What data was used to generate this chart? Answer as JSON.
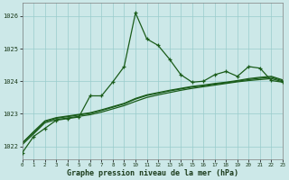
{
  "title": "Graphe pression niveau de la mer (hPa)",
  "background_color": "#cce8e8",
  "grid_color": "#99cccc",
  "line_color_dark": "#1a5c1a",
  "line_color_bright": "#33aa33",
  "xlim": [
    0,
    23
  ],
  "ylim": [
    1021.6,
    1026.4
  ],
  "yticks": [
    1022,
    1023,
    1024,
    1025,
    1026
  ],
  "xticks": [
    0,
    1,
    2,
    3,
    4,
    5,
    6,
    7,
    8,
    9,
    10,
    11,
    12,
    13,
    14,
    15,
    16,
    17,
    18,
    19,
    20,
    21,
    22,
    23
  ],
  "series1_x": [
    0,
    1,
    2,
    3,
    4,
    5,
    6,
    7,
    8,
    9,
    10,
    11,
    12,
    13,
    14,
    15,
    16,
    17,
    18,
    19,
    20,
    21,
    22,
    23
  ],
  "series1_y": [
    1021.8,
    1022.3,
    1022.55,
    1022.8,
    1022.85,
    1022.9,
    1023.55,
    1023.55,
    1023.98,
    1024.45,
    1026.1,
    1025.3,
    1025.1,
    1024.68,
    1024.2,
    1023.97,
    1024.0,
    1024.2,
    1024.3,
    1024.15,
    1024.45,
    1024.4,
    1024.02,
    1023.97
  ],
  "series2_x": [
    0,
    1,
    2,
    3,
    4,
    5,
    6,
    7,
    8,
    9,
    10,
    11,
    12,
    13,
    14,
    15,
    16,
    17,
    18,
    19,
    20,
    21,
    22,
    23
  ],
  "series2_y": [
    1022.05,
    1022.38,
    1022.72,
    1022.82,
    1022.87,
    1022.92,
    1022.97,
    1023.05,
    1023.15,
    1023.25,
    1023.38,
    1023.5,
    1023.58,
    1023.65,
    1023.72,
    1023.78,
    1023.83,
    1023.88,
    1023.93,
    1023.98,
    1024.02,
    1024.05,
    1024.08,
    1023.98
  ],
  "series3_x": [
    0,
    1,
    2,
    3,
    4,
    5,
    6,
    7,
    8,
    9,
    10,
    11,
    12,
    13,
    14,
    15,
    16,
    17,
    18,
    19,
    20,
    21,
    22,
    23
  ],
  "series3_y": [
    1022.1,
    1022.42,
    1022.76,
    1022.86,
    1022.91,
    1022.96,
    1023.01,
    1023.1,
    1023.2,
    1023.3,
    1023.45,
    1023.56,
    1023.63,
    1023.7,
    1023.76,
    1023.82,
    1023.86,
    1023.91,
    1023.95,
    1024.0,
    1024.05,
    1024.09,
    1024.12,
    1024.01
  ],
  "series4_x": [
    0,
    1,
    2,
    3,
    4,
    5,
    6,
    7,
    8,
    9,
    10,
    11,
    12,
    13,
    14,
    15,
    16,
    17,
    18,
    19,
    20,
    21,
    22,
    23
  ],
  "series4_y": [
    1022.1,
    1022.45,
    1022.78,
    1022.88,
    1022.93,
    1022.98,
    1023.03,
    1023.12,
    1023.22,
    1023.32,
    1023.47,
    1023.58,
    1023.65,
    1023.72,
    1023.78,
    1023.84,
    1023.88,
    1023.93,
    1023.97,
    1024.02,
    1024.08,
    1024.12,
    1024.15,
    1024.04
  ]
}
